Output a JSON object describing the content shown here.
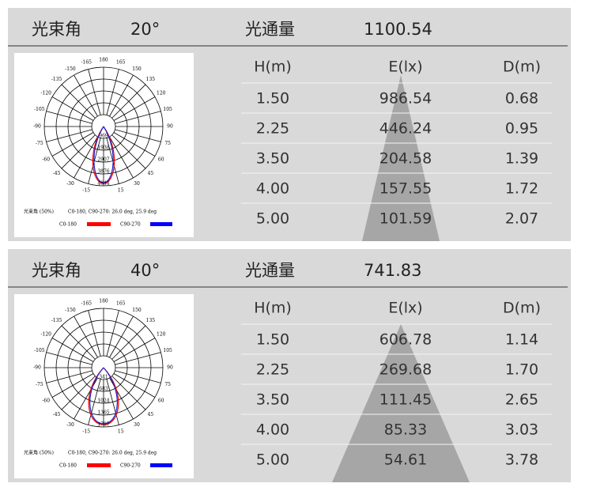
{
  "panels": [
    {
      "header": {
        "beam_label": "光束角",
        "beam_angle": "20°",
        "flux_label": "光通量",
        "flux": "1100.54"
      },
      "diagram": {
        "angle_labels": [
          "-165",
          "-150",
          "-135",
          "-120",
          "-105",
          "-90",
          "-75",
          "-60",
          "-45",
          "-30",
          "-15",
          "180",
          "165",
          "150",
          "135",
          "120",
          "105",
          "90",
          "75",
          "60",
          "45",
          "30",
          "15"
        ],
        "ring_labels": [
          "969",
          "1938",
          "2907",
          "3876",
          "4844"
        ],
        "caption_left": "光束角 (50%)",
        "caption_right": "C0-180, C90-270: 26.0 deg, 25.9 deg",
        "legend": [
          "C0-180",
          "C90-270"
        ]
      },
      "table": {
        "columns": [
          "H(m)",
          "E(lx)",
          "D(m)"
        ],
        "rows": [
          [
            "1.50",
            "986.54",
            "0.68"
          ],
          [
            "2.25",
            "446.24",
            "0.95"
          ],
          [
            "3.50",
            "204.58",
            "1.39"
          ],
          [
            "4.00",
            "157.55",
            "1.72"
          ],
          [
            "5.00",
            "101.59",
            "2.07"
          ]
        ]
      }
    },
    {
      "header": {
        "beam_label": "光束角",
        "beam_angle": "40°",
        "flux_label": "光通量",
        "flux": "741.83"
      },
      "diagram": {
        "angle_labels": [
          "-165",
          "-150",
          "-135",
          "-120",
          "-105",
          "-90",
          "-75",
          "-60",
          "-45",
          "-30",
          "-15",
          "180",
          "165",
          "150",
          "135",
          "120",
          "105",
          "90",
          "75",
          "60",
          "45",
          "30",
          "15"
        ],
        "ring_labels": [
          "341",
          "683",
          "1024",
          "1365",
          "1707"
        ],
        "caption_left": "光束角 (50%)",
        "caption_right": "C0-180, C90-270: 26.0 deg, 25.9 deg",
        "legend": [
          "C0-180",
          "C90-270"
        ]
      },
      "table": {
        "columns": [
          "H(m)",
          "E(lx)",
          "D(m)"
        ],
        "rows": [
          [
            "1.50",
            "606.78",
            "1.14"
          ],
          [
            "2.25",
            "269.68",
            "1.70"
          ],
          [
            "3.50",
            "111.45",
            "2.65"
          ],
          [
            "4.00",
            "85.33",
            "3.03"
          ],
          [
            "5.00",
            "54.61",
            "3.78"
          ]
        ]
      }
    }
  ]
}
